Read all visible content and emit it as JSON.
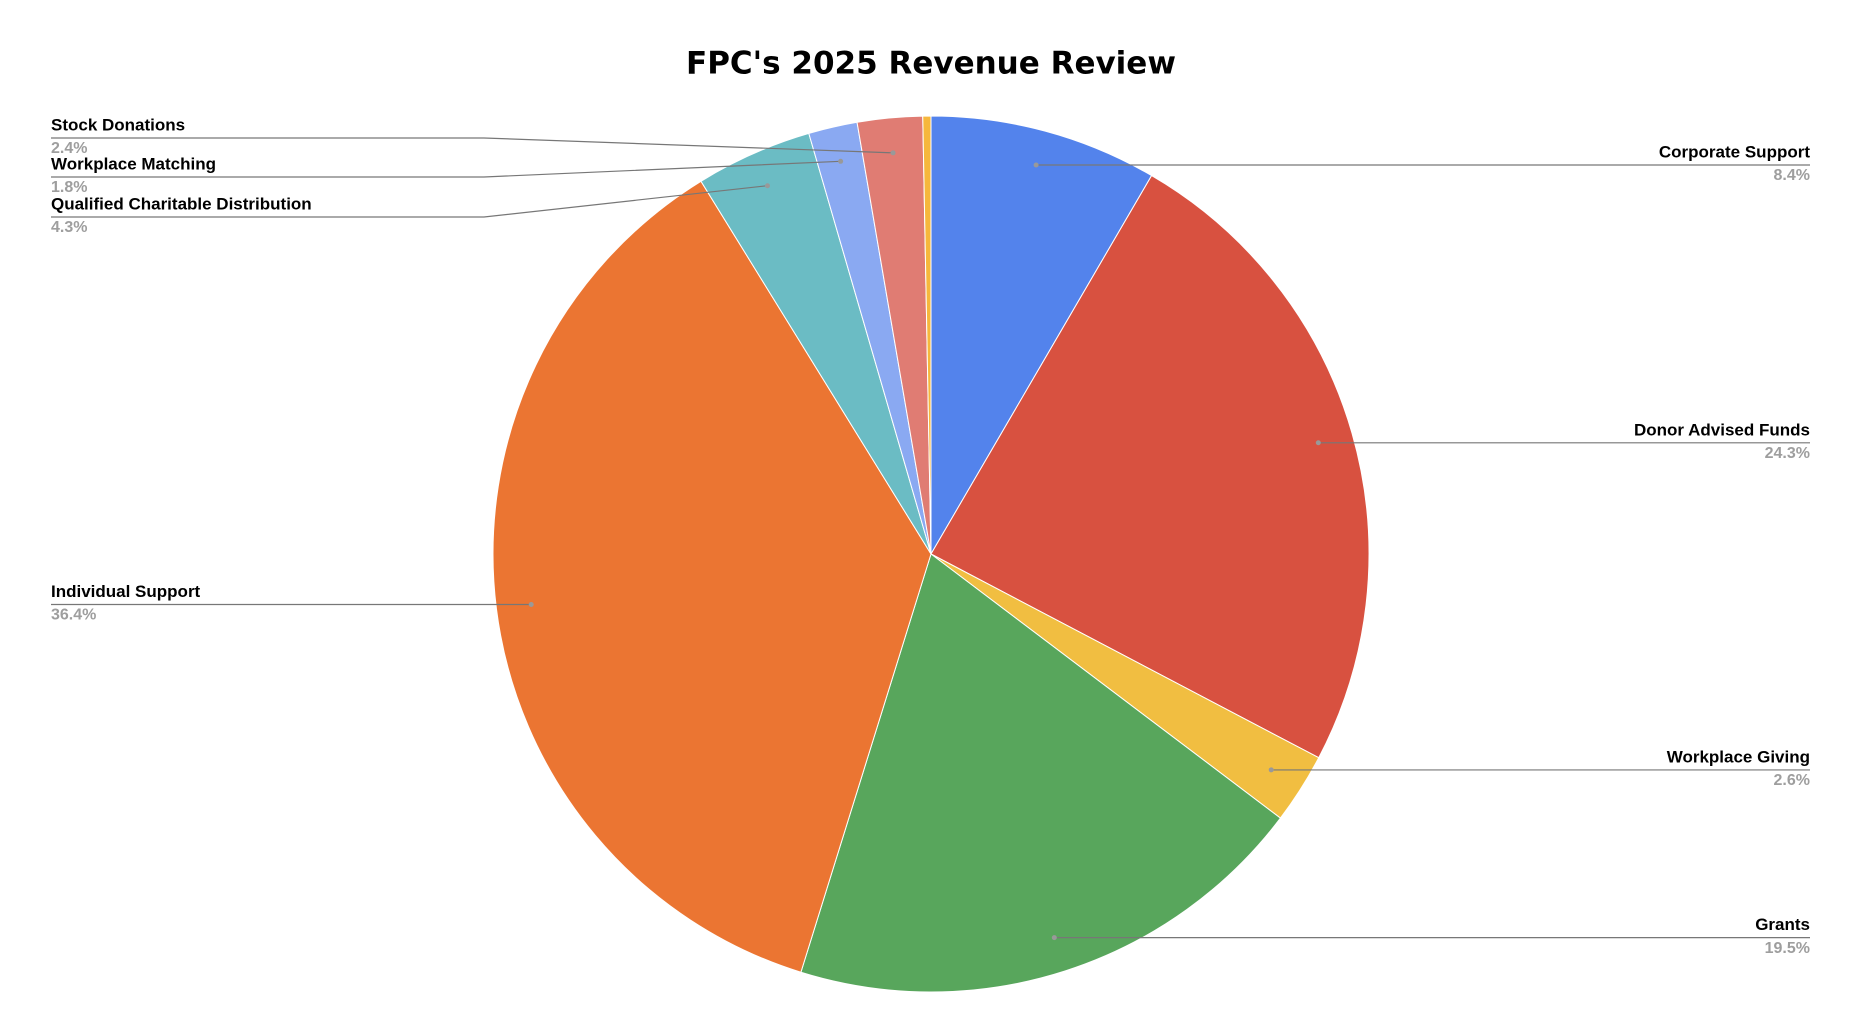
{
  "chart_data": {
    "type": "pie",
    "title": "FPC's 2025 Revenue Review",
    "categories": [
      "Corporate Support",
      "Donor Advised Funds",
      "Workplace Giving",
      "Grants",
      "Individual Support",
      "Qualified Charitable Distribution",
      "Workplace Matching",
      "Stock Donations",
      null
    ],
    "values": [
      8.4,
      24.3,
      2.6,
      19.5,
      36.4,
      4.3,
      1.8,
      2.4,
      0.3
    ],
    "value_labels": [
      "8.4%",
      "24.3%",
      "2.6%",
      "19.5%",
      "36.4%",
      "4.3%",
      "1.8%",
      "2.4%",
      null
    ],
    "colors": [
      "#5383ec",
      "#d85140",
      "#f1be41",
      "#58a65c",
      "#eb7532",
      "#6bbcc4",
      "#8aa9f2",
      "#e07c73",
      "#f6b73c"
    ]
  }
}
